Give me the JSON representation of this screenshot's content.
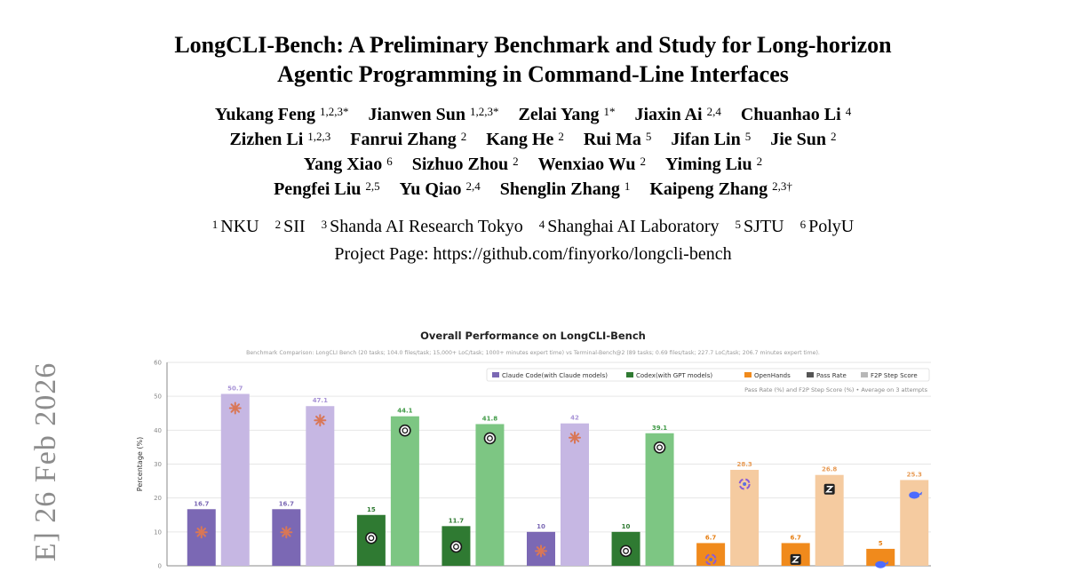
{
  "paper": {
    "title_line1": "LongCLI-Bench: A Preliminary Benchmark and Study for Long-horizon",
    "title_line2": "Agentic Programming in Command-Line Interfaces",
    "author_lines": [
      [
        {
          "name": "Yukang Feng",
          "sup": "1,2,3*"
        },
        {
          "name": "Jianwen Sun",
          "sup": "1,2,3*"
        },
        {
          "name": "Zelai Yang",
          "sup": "1*"
        },
        {
          "name": "Jiaxin Ai",
          "sup": "2,4"
        },
        {
          "name": "Chuanhao Li",
          "sup": "4"
        }
      ],
      [
        {
          "name": "Zizhen Li",
          "sup": "1,2,3"
        },
        {
          "name": "Fanrui Zhang",
          "sup": "2"
        },
        {
          "name": "Kang He",
          "sup": "2"
        },
        {
          "name": "Rui Ma",
          "sup": "5"
        },
        {
          "name": "Jifan Lin",
          "sup": "5"
        },
        {
          "name": "Jie Sun",
          "sup": "2"
        }
      ],
      [
        {
          "name": "Yang Xiao",
          "sup": "6"
        },
        {
          "name": "Sizhuo Zhou",
          "sup": "2"
        },
        {
          "name": "Wenxiao Wu",
          "sup": "2"
        },
        {
          "name": "Yiming Liu",
          "sup": "2"
        }
      ],
      [
        {
          "name": "Pengfei Liu",
          "sup": "2,5"
        },
        {
          "name": "Yu Qiao",
          "sup": "2,4"
        },
        {
          "name": "Shenglin Zhang",
          "sup": "1"
        },
        {
          "name": "Kaipeng Zhang",
          "sup": "2,3†"
        }
      ]
    ],
    "affiliations": [
      {
        "num": "1",
        "name": "NKU"
      },
      {
        "num": "2",
        "name": "SII"
      },
      {
        "num": "3",
        "name": "Shanda AI Research Tokyo"
      },
      {
        "num": "4",
        "name": "Shanghai AI Laboratory"
      },
      {
        "num": "5",
        "name": "SJTU"
      },
      {
        "num": "6",
        "name": "PolyU"
      }
    ],
    "project_page": "Project Page: https://github.com/finyorko/longcli-bench",
    "arxiv_side": "E]  26 Feb 2026"
  },
  "colors": {
    "claude_dark": "#7b68b4",
    "claude_light": "#c6b7e3",
    "codex_dark": "#2f7a32",
    "codex_light": "#7dc683",
    "openhands_dark": "#f08a1c",
    "openhands_light": "#f5cba0",
    "grid": "#e6e6e6",
    "axis": "#888888",
    "claude_icon": "#d97757"
  },
  "chart_data": {
    "type": "bar",
    "title": "Overall Performance on LongCLI-Bench",
    "subtitle": "Benchmark Comparison: LongCLI Bench (20 tasks; 104.0 files/task; 15,000+ LoC/task; 1000+ minutes expert time) vs Terminal-Bench@2 (89 tasks; 0.69 files/task; 227.7 LoC/task; 206.7 minutes expert time).",
    "note": "Pass Rate (%) and F2P Step Score (%) • Average on 3 attempts",
    "ylabel": "Percentage (%)",
    "ylim": [
      0,
      60
    ],
    "yticks": [
      0,
      10,
      20,
      30,
      40,
      50,
      60
    ],
    "grid": true,
    "legend_position": "top-right",
    "legend": [
      "Claude Code(with Claude models)",
      "Codex(with GPT models)",
      "OpenHands",
      "Pass Rate",
      "F2P Step Score"
    ],
    "groups": [
      {
        "family": "claude",
        "icon": "claude",
        "pass_rate": 16.7,
        "f2p": 50.7
      },
      {
        "family": "claude",
        "icon": "claude",
        "pass_rate": 16.7,
        "f2p": 47.1
      },
      {
        "family": "codex",
        "icon": "openai",
        "pass_rate": 15.0,
        "f2p": 44.1
      },
      {
        "family": "codex",
        "icon": "openai",
        "pass_rate": 11.7,
        "f2p": 41.8
      },
      {
        "family": "claude",
        "icon": "claude",
        "pass_rate": 10.0,
        "f2p": 42.0
      },
      {
        "family": "codex",
        "icon": "openai",
        "pass_rate": 10.0,
        "f2p": 39.1
      },
      {
        "family": "openhands",
        "icon": "swirl",
        "pass_rate": 6.7,
        "f2p": 28.3
      },
      {
        "family": "openhands",
        "icon": "zai",
        "pass_rate": 6.7,
        "f2p": 26.8
      },
      {
        "family": "openhands",
        "icon": "whale",
        "pass_rate": 5.0,
        "f2p": 25.3
      }
    ]
  }
}
